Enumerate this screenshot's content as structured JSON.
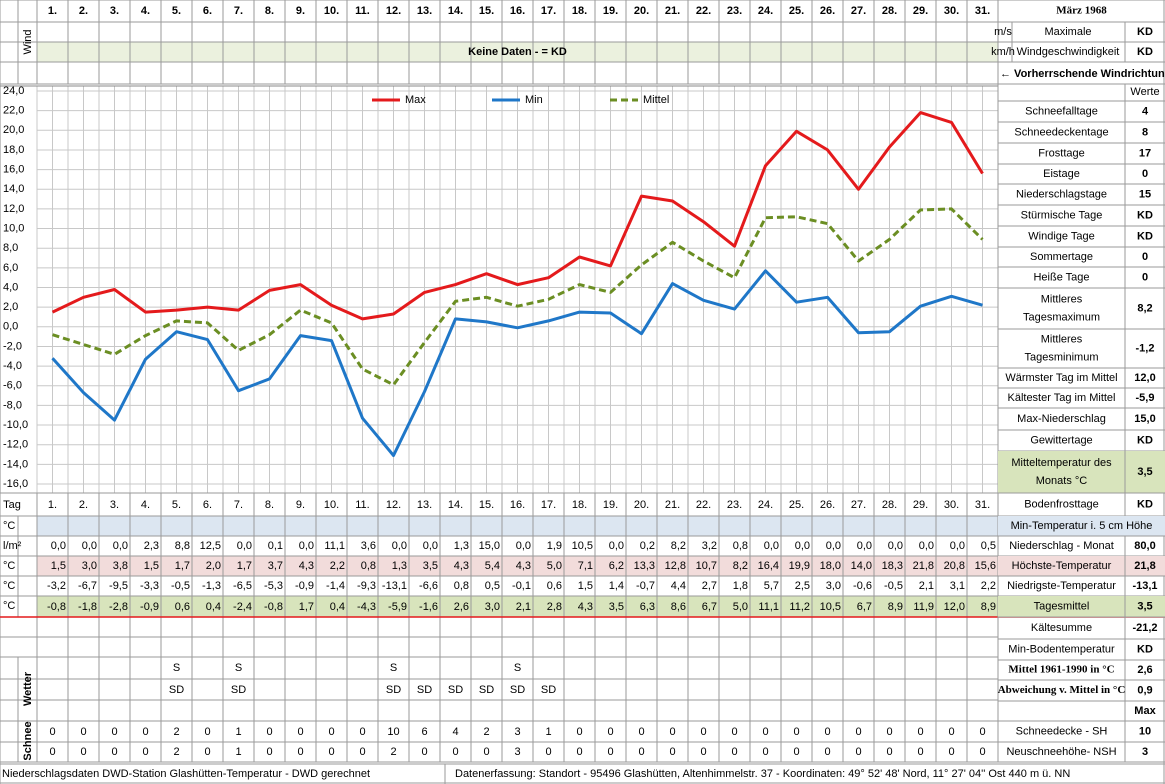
{
  "header": {
    "month_title": "März 1968",
    "wind_label": "Wind",
    "no_data": "Keine Daten -  = KD",
    "wind_units": [
      "m/s",
      "km/h"
    ],
    "wind_max_label": [
      "Maximale",
      "Windgeschwindigkeit"
    ],
    "wind_values": [
      "KD",
      "KD"
    ],
    "wind_direction": "← Vorherrschende Windrichtung",
    "values_label": "Werte",
    "day_label": "Tag"
  },
  "chart_data": {
    "type": "line",
    "categories": [
      "1.",
      "2.",
      "3.",
      "4.",
      "5.",
      "6.",
      "7.",
      "8.",
      "9.",
      "10.",
      "11.",
      "12.",
      "13.",
      "14.",
      "15.",
      "16.",
      "17.",
      "18.",
      "19.",
      "20.",
      "21.",
      "22.",
      "23.",
      "24.",
      "25.",
      "26.",
      "27.",
      "28.",
      "29.",
      "30.",
      "31."
    ],
    "series": [
      {
        "name": "Max",
        "color": "#e41a1c",
        "dashed": false,
        "values": [
          1.5,
          3.0,
          3.8,
          1.5,
          1.7,
          2.0,
          1.7,
          3.7,
          4.3,
          2.2,
          0.8,
          1.3,
          3.5,
          4.3,
          5.4,
          4.3,
          5.0,
          7.1,
          6.2,
          13.3,
          12.8,
          10.7,
          8.2,
          16.4,
          19.9,
          18.0,
          14.0,
          18.3,
          21.8,
          20.8,
          15.6
        ],
        "value_labels": [
          "1,5",
          "3,0",
          "3,8",
          "1,5",
          "1,7",
          "2,0",
          "1,7",
          "3,7",
          "4,3",
          "2,2",
          "0,8",
          "1,3",
          "3,5",
          "4,3",
          "5,4",
          "4,3",
          "5,0",
          "7,1",
          "6,2",
          "13,3",
          "12,8",
          "10,7",
          "8,2",
          "16,4",
          "19,9",
          "18,0",
          "14,0",
          "18,3",
          "21,8",
          "20,8",
          "15,6"
        ]
      },
      {
        "name": "Min",
        "color": "#1f77c8",
        "dashed": false,
        "values": [
          -3.2,
          -6.7,
          -9.5,
          -3.3,
          -0.5,
          -1.3,
          -6.5,
          -5.3,
          -0.9,
          -1.4,
          -9.3,
          -13.1,
          -6.6,
          0.8,
          0.5,
          -0.1,
          0.6,
          1.5,
          1.4,
          -0.7,
          4.4,
          2.7,
          1.8,
          5.7,
          2.5,
          3.0,
          -0.6,
          -0.5,
          2.1,
          3.1,
          2.2
        ],
        "value_labels": [
          "-3,2",
          "-6,7",
          "-9,5",
          "-3,3",
          "-0,5",
          "-1,3",
          "-6,5",
          "-5,3",
          "-0,9",
          "-1,4",
          "-9,3",
          "-13,1",
          "-6,6",
          "0,8",
          "0,5",
          "-0,1",
          "0,6",
          "1,5",
          "1,4",
          "-0,7",
          "4,4",
          "2,7",
          "1,8",
          "5,7",
          "2,5",
          "3,0",
          "-0,6",
          "-0,5",
          "2,1",
          "3,1",
          "2,2"
        ]
      },
      {
        "name": "Mittel",
        "color": "#6b8e23",
        "dashed": true,
        "values": [
          -0.8,
          -1.8,
          -2.8,
          -0.9,
          0.6,
          0.4,
          -2.4,
          -0.8,
          1.7,
          0.4,
          -4.3,
          -5.9,
          -1.6,
          2.6,
          3.0,
          2.1,
          2.8,
          4.3,
          3.5,
          6.3,
          8.6,
          6.7,
          5.0,
          11.1,
          11.2,
          10.5,
          6.7,
          8.9,
          11.9,
          12.0,
          8.9
        ],
        "value_labels": [
          "-0,8",
          "-1,8",
          "-2,8",
          "-0,9",
          "0,6",
          "0,4",
          "-2,4",
          "-0,8",
          "1,7",
          "0,4",
          "-4,3",
          "-5,9",
          "-1,6",
          "2,6",
          "3,0",
          "2,1",
          "2,8",
          "4,3",
          "3,5",
          "6,3",
          "8,6",
          "6,7",
          "5,0",
          "11,1",
          "11,2",
          "10,5",
          "6,7",
          "8,9",
          "11,9",
          "12,0",
          "8,9"
        ]
      }
    ],
    "ylim": [
      -16,
      24
    ],
    "yticks": [
      {
        "value": 24,
        "label": "24,0"
      },
      {
        "value": 22,
        "label": "22,0"
      },
      {
        "value": 20,
        "label": "20,0"
      },
      {
        "value": 18,
        "label": "18,0"
      },
      {
        "value": 16,
        "label": "16,0"
      },
      {
        "value": 14,
        "label": "14,0"
      },
      {
        "value": 12,
        "label": "12,0"
      },
      {
        "value": 10,
        "label": "10,0"
      },
      {
        "value": 8,
        "label": "8,0"
      },
      {
        "value": 6,
        "label": "6,0"
      },
      {
        "value": 4,
        "label": "4,0"
      },
      {
        "value": 2,
        "label": "2,0"
      },
      {
        "value": 0,
        "label": "0,0"
      },
      {
        "value": -2,
        "label": "-2,0"
      },
      {
        "value": -4,
        "label": "-4,0"
      },
      {
        "value": -6,
        "label": "-6,0"
      },
      {
        "value": -8,
        "label": "-8,0"
      },
      {
        "value": -10,
        "label": "-10,0"
      },
      {
        "value": -12,
        "label": "-12,0"
      },
      {
        "value": -14,
        "label": "-14,0"
      },
      {
        "value": -16,
        "label": "-16,0"
      }
    ],
    "grid": true,
    "legend": "top"
  },
  "table": {
    "unit_labels": [
      "°C",
      "l/m²",
      "°C",
      "°C",
      "°C"
    ],
    "precipitation": [
      "0,0",
      "0,0",
      "0,0",
      "2,3",
      "8,8",
      "12,5",
      "0,0",
      "0,1",
      "0,0",
      "11,1",
      "3,6",
      "0,0",
      "0,0",
      "1,3",
      "15,0",
      "0,0",
      "1,9",
      "10,5",
      "0,0",
      "0,2",
      "8,2",
      "3,2",
      "0,8",
      "0,0",
      "0,0",
      "0,0",
      "0,0",
      "0,0",
      "0,0",
      "0,0",
      "0,5"
    ]
  },
  "weather": {
    "label": "Wetter",
    "row1": [
      {
        "day": 5,
        "text": "S"
      },
      {
        "day": 7,
        "text": "S"
      },
      {
        "day": 12,
        "text": "S"
      },
      {
        "day": 16,
        "text": "S"
      }
    ],
    "row2": [
      {
        "day": 5,
        "text": "SD"
      },
      {
        "day": 7,
        "text": "SD"
      },
      {
        "day": 12,
        "text": "SD"
      },
      {
        "day": 13,
        "text": "SD"
      },
      {
        "day": 14,
        "text": "SD"
      },
      {
        "day": 15,
        "text": "SD"
      },
      {
        "day": 16,
        "text": "SD"
      },
      {
        "day": 17,
        "text": "SD"
      }
    ]
  },
  "snow": {
    "label": "Schnee",
    "sh": [
      0,
      0,
      0,
      0,
      2,
      0,
      1,
      0,
      0,
      0,
      0,
      10,
      6,
      4,
      2,
      3,
      1,
      0,
      0,
      0,
      0,
      0,
      0,
      0,
      0,
      0,
      0,
      0,
      0,
      0,
      0
    ],
    "nsh": [
      0,
      0,
      0,
      0,
      2,
      0,
      1,
      0,
      0,
      0,
      0,
      2,
      0,
      0,
      0,
      3,
      0,
      0,
      0,
      0,
      0,
      0,
      0,
      0,
      0,
      0,
      0,
      0,
      0,
      0,
      0
    ]
  },
  "stats": [
    {
      "label": [
        "Schneefalltage"
      ],
      "value": "4"
    },
    {
      "label": [
        "Schneedeckentage"
      ],
      "value": "8"
    },
    {
      "label": [
        "Frosttage"
      ],
      "value": "17"
    },
    {
      "label": [
        "Eistage"
      ],
      "value": "0"
    },
    {
      "label": [
        "Niederschlagstage"
      ],
      "value": "15"
    },
    {
      "label": [
        "Stürmische Tage"
      ],
      "value": "KD"
    },
    {
      "label": [
        "Windige Tage"
      ],
      "value": "KD"
    },
    {
      "label": [
        "Sommertage"
      ],
      "value": "0"
    },
    {
      "label": [
        "Heiße Tage"
      ],
      "value": "0"
    },
    {
      "label": [
        "Mittleres",
        "Tagesmaximum"
      ],
      "value": "8,2"
    },
    {
      "label": [
        "Mittleres",
        "Tagesminimum"
      ],
      "value": "-1,2"
    },
    {
      "label": [
        "Wärmster Tag im Mittel"
      ],
      "value": "12,0"
    },
    {
      "label": [
        "Kältester Tag im Mittel"
      ],
      "value": "-5,9"
    },
    {
      "label": [
        "Max-Niederschlag"
      ],
      "value": "15,0"
    },
    {
      "label": [
        "Gewittertage"
      ],
      "value": "KD"
    },
    {
      "label": [
        "Mitteltemperatur des",
        "Monats °C"
      ],
      "value": "3,5"
    },
    {
      "label": [
        "Bodenfrosttage"
      ],
      "value": "KD"
    },
    {
      "label": [
        "Min-Temperatur i. 5 cm Höhe"
      ]
    },
    {
      "label": [
        "Niederschlag - Monat"
      ],
      "value": "80,0"
    },
    {
      "label": [
        "Höchste-Temperatur"
      ],
      "value": "21,8"
    },
    {
      "label": [
        "Niedrigste-Temperatur"
      ],
      "value": "-13,1"
    },
    {
      "label": [
        "Tagesmittel"
      ],
      "value": "3,5"
    },
    {
      "label": [
        "Kältesumme"
      ],
      "value": "-21,2"
    },
    {
      "label": [
        "Min-Bodentemperatur"
      ],
      "value": "KD"
    },
    {
      "label": [
        "Mittel 1961-1990 in °C"
      ],
      "value": "2,6"
    },
    {
      "label": [
        "Abweichung v. Mittel in °C"
      ],
      "value": "0,9"
    },
    {
      "value": "Max"
    },
    {
      "label": [
        "Schneedecke -  SH"
      ],
      "value": "10"
    },
    {
      "label": [
        "Neuschneehöhe- NSH"
      ],
      "value": "3"
    }
  ],
  "footer": {
    "left": "Niederschlagsdaten DWD-Station Glashütten-Temperatur -  DWD gerechnet",
    "right": "Datenerfassung: Standort -  95496  Glashütten, Altenhimmelstr. 37 - Koordinaten:  49° 52' 48' Nord,   11° 27' 04'' Ost  440 m ü. NN"
  }
}
